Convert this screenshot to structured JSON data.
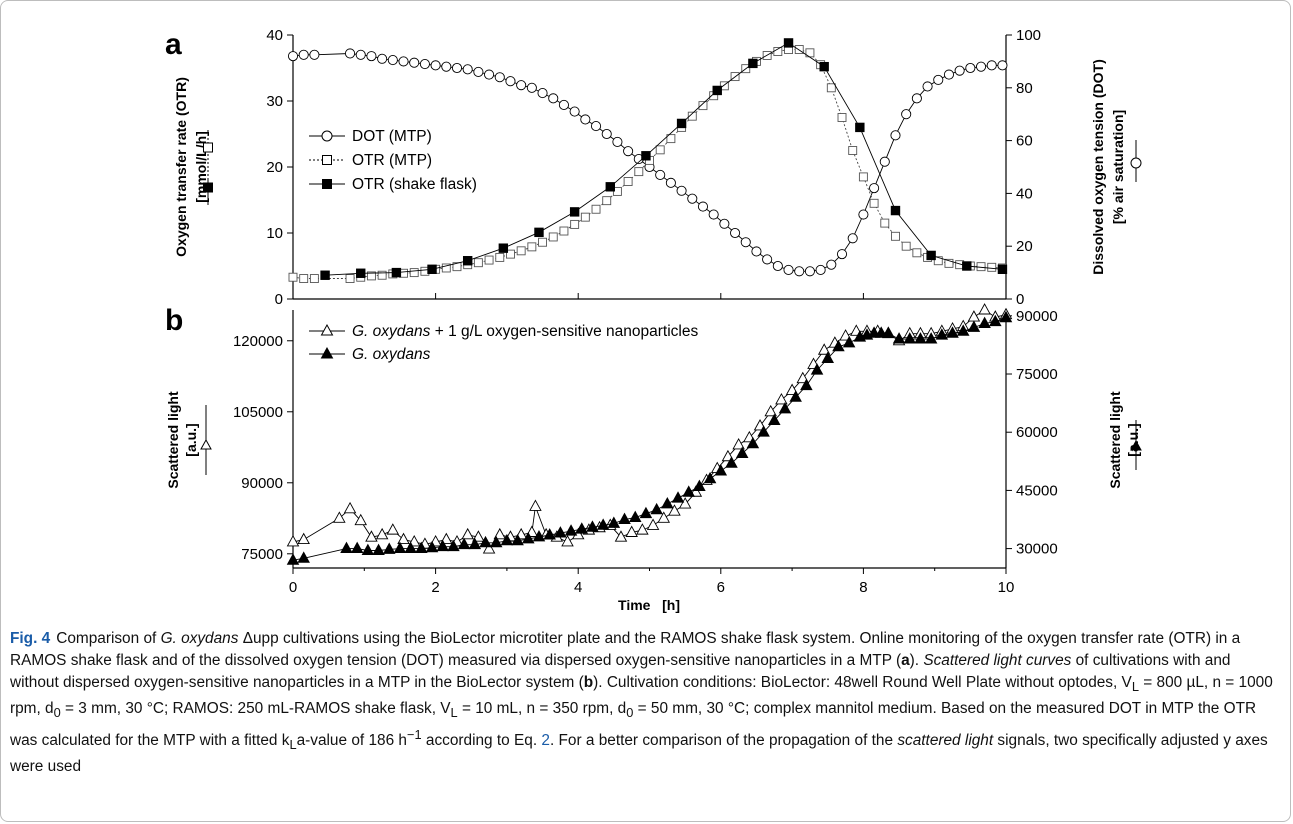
{
  "panels": {
    "a": {
      "label": "a",
      "y_left": {
        "label_line1": "Oxygen transfer rate (OTR)",
        "label_line2": "[mmol/L/h]",
        "ticks": [
          "0",
          "10",
          "20",
          "30",
          "40"
        ],
        "range": [
          0,
          40
        ]
      },
      "y_right": {
        "label_line1": "Dissolved oxygen tension (DOT)",
        "label_line2": "[% air saturation]",
        "ticks": [
          "0",
          "20",
          "40",
          "60",
          "80",
          "100"
        ],
        "range": [
          0,
          100
        ]
      },
      "legend": [
        "DOT (MTP)",
        "OTR (MTP)",
        "OTR (shake flask)"
      ]
    },
    "b": {
      "label": "b",
      "y_left": {
        "label_line1": "Scattered light",
        "label_line2": "[a.u.]",
        "ticks": [
          "75000",
          "90000",
          "105000",
          "120000"
        ],
        "range": [
          72000,
          126500
        ]
      },
      "y_right": {
        "label_line1": "Scattered light",
        "label_line2": "[a.u.]",
        "ticks": [
          "30000",
          "45000",
          "60000",
          "75000",
          "90000"
        ],
        "range": [
          25000,
          91500
        ]
      },
      "legend": [
        {
          "italic": "G. oxydans",
          "rest": " + 1 g/L oxygen-sensitive nanoparticles"
        },
        {
          "italic": "G. oxydans",
          "rest": ""
        }
      ]
    },
    "x": {
      "label": "Time   [h]",
      "ticks": [
        "0",
        "2",
        "4",
        "6",
        "8",
        "10"
      ],
      "range": [
        0,
        10
      ]
    }
  },
  "chart_data": [
    {
      "type": "line",
      "panel": "a",
      "xlabel": "Time   [h]",
      "ylabel": "Oxygen transfer rate (OTR) [mmol/L/h]",
      "ylabel_right": "Dissolved oxygen tension (DOT) [% air saturation]",
      "xlim": [
        0,
        10
      ],
      "ylim": [
        0,
        40
      ],
      "ylim_right": [
        0,
        100
      ],
      "series": [
        {
          "name": "DOT (MTP)",
          "axis": "right",
          "marker": "open-circle",
          "x": [
            0,
            0.15,
            0.3,
            0.8,
            0.95,
            1.1,
            1.25,
            1.4,
            1.55,
            1.7,
            1.85,
            2.0,
            2.15,
            2.3,
            2.45,
            2.6,
            2.75,
            2.9,
            3.05,
            3.2,
            3.35,
            3.5,
            3.65,
            3.8,
            3.95,
            4.1,
            4.25,
            4.4,
            4.55,
            4.7,
            4.85,
            5.0,
            5.15,
            5.3,
            5.45,
            5.6,
            5.75,
            5.9,
            6.05,
            6.2,
            6.35,
            6.5,
            6.65,
            6.8,
            6.95,
            7.1,
            7.25,
            7.4,
            7.55,
            7.7,
            7.85,
            8.0,
            8.15,
            8.3,
            8.45,
            8.6,
            8.75,
            8.9,
            9.05,
            9.2,
            9.35,
            9.5,
            9.65,
            9.8,
            9.95
          ],
          "y": [
            92,
            92.5,
            92.5,
            93,
            92.5,
            92,
            91,
            90.5,
            90,
            89.5,
            89,
            88.5,
            88,
            87.5,
            87,
            86,
            85,
            84,
            82.5,
            81,
            80,
            78,
            76,
            73.5,
            71,
            68,
            65.5,
            62.5,
            59.5,
            56,
            53,
            50,
            47,
            44,
            41,
            38,
            35,
            32,
            28.5,
            25,
            21.5,
            18,
            15,
            12.5,
            11,
            10.5,
            10.5,
            11,
            13,
            17,
            23,
            32,
            42,
            52,
            62,
            70,
            76,
            80.5,
            83,
            85,
            86.5,
            87.5,
            88,
            88.5,
            88.5
          ]
        },
        {
          "name": "OTR (MTP)",
          "axis": "left",
          "marker": "open-square",
          "x": [
            0,
            0.15,
            0.3,
            0.8,
            0.95,
            1.1,
            1.25,
            1.4,
            1.55,
            1.7,
            1.85,
            2.0,
            2.15,
            2.3,
            2.45,
            2.6,
            2.75,
            2.9,
            3.05,
            3.2,
            3.35,
            3.5,
            3.65,
            3.8,
            3.95,
            4.1,
            4.25,
            4.4,
            4.55,
            4.7,
            4.85,
            5.0,
            5.15,
            5.3,
            5.45,
            5.6,
            5.75,
            5.9,
            6.05,
            6.2,
            6.35,
            6.5,
            6.65,
            6.8,
            6.95,
            7.1,
            7.25,
            7.4,
            7.55,
            7.7,
            7.85,
            8.0,
            8.15,
            8.3,
            8.45,
            8.6,
            8.75,
            8.9,
            9.05,
            9.2,
            9.35,
            9.5,
            9.65,
            9.8,
            9.95
          ],
          "y": [
            3.3,
            3.1,
            3.1,
            3.1,
            3.3,
            3.5,
            3.6,
            3.8,
            3.9,
            4.0,
            4.2,
            4.5,
            4.7,
            4.9,
            5.2,
            5.5,
            5.9,
            6.3,
            6.8,
            7.3,
            7.9,
            8.6,
            9.4,
            10.3,
            11.3,
            12.4,
            13.6,
            14.9,
            16.3,
            17.8,
            19.3,
            21.0,
            22.6,
            24.3,
            26.0,
            27.7,
            29.3,
            30.8,
            32.3,
            33.7,
            34.9,
            36.0,
            36.9,
            37.5,
            37.8,
            37.8,
            37.3,
            35.5,
            32.0,
            27.5,
            22.5,
            18.5,
            14.5,
            11.5,
            9.5,
            8.0,
            7.0,
            6.3,
            5.8,
            5.4,
            5.2,
            5.0,
            4.9,
            4.8,
            4.7
          ]
        },
        {
          "name": "OTR (shake flask)",
          "axis": "left",
          "marker": "filled-square",
          "x": [
            0.45,
            0.95,
            1.45,
            1.95,
            2.45,
            2.95,
            3.45,
            3.95,
            4.45,
            4.95,
            5.45,
            5.95,
            6.45,
            6.95,
            7.45,
            7.95,
            8.45,
            8.95,
            9.45,
            9.95
          ],
          "y": [
            3.6,
            3.9,
            4.0,
            4.5,
            5.8,
            7.7,
            10.1,
            13.2,
            17.0,
            21.7,
            26.6,
            31.6,
            35.7,
            38.8,
            35.2,
            26.0,
            13.4,
            6.6,
            5.0,
            4.5
          ]
        }
      ]
    },
    {
      "type": "line",
      "panel": "b",
      "xlabel": "Time   [h]",
      "ylabel": "Scattered light [a.u.]",
      "ylabel_right": "Scattered light [a.u.]",
      "xlim": [
        0,
        10
      ],
      "ylim": [
        72000,
        126500
      ],
      "ylim_right": [
        25000,
        91500
      ],
      "series": [
        {
          "name": "G. oxydans + 1 g/L oxygen-sensitive nanoparticles",
          "axis": "left",
          "marker": "open-triangle",
          "x": [
            0,
            0.15,
            0.65,
            0.8,
            0.95,
            1.1,
            1.25,
            1.4,
            1.55,
            1.7,
            1.85,
            2.0,
            2.15,
            2.3,
            2.45,
            2.6,
            2.75,
            2.9,
            3.05,
            3.2,
            3.35,
            3.4,
            3.55,
            3.7,
            3.85,
            4.0,
            4.15,
            4.3,
            4.45,
            4.6,
            4.75,
            4.9,
            5.05,
            5.2,
            5.35,
            5.5,
            5.65,
            5.8,
            5.95,
            6.1,
            6.25,
            6.4,
            6.55,
            6.7,
            6.85,
            7.0,
            7.15,
            7.3,
            7.45,
            7.6,
            7.75,
            7.9,
            8.05,
            8.2,
            8.35,
            8.5,
            8.65,
            8.8,
            8.95,
            9.1,
            9.25,
            9.4,
            9.55,
            9.7,
            9.85,
            10.0
          ],
          "y": [
            77500,
            78000,
            82500,
            84500,
            82000,
            78500,
            79000,
            80000,
            78000,
            77500,
            77000,
            77500,
            78000,
            77500,
            79000,
            78500,
            76000,
            79000,
            78500,
            79000,
            79500,
            85000,
            79000,
            78500,
            77500,
            79000,
            80000,
            80500,
            81000,
            78500,
            79500,
            80000,
            81000,
            82500,
            84000,
            85500,
            88000,
            90500,
            93000,
            95500,
            98000,
            99500,
            102000,
            105000,
            107500,
            109500,
            112000,
            115000,
            118000,
            119500,
            121000,
            122000,
            122000,
            122000,
            121500,
            120000,
            121500,
            121500,
            121500,
            122000,
            122500,
            123000,
            125000,
            126500,
            125000,
            125500
          ]
        },
        {
          "name": "G. oxydans",
          "axis": "right",
          "marker": "filled-triangle",
          "x": [
            0,
            0.15,
            0.75,
            0.9,
            1.05,
            1.2,
            1.35,
            1.5,
            1.65,
            1.8,
            1.95,
            2.1,
            2.25,
            2.4,
            2.55,
            2.7,
            2.85,
            3.0,
            3.15,
            3.3,
            3.45,
            3.6,
            3.75,
            3.9,
            4.05,
            4.2,
            4.35,
            4.5,
            4.65,
            4.8,
            4.95,
            5.1,
            5.25,
            5.4,
            5.55,
            5.7,
            5.85,
            6.0,
            6.15,
            6.3,
            6.45,
            6.6,
            6.75,
            6.9,
            7.05,
            7.2,
            7.35,
            7.5,
            7.65,
            7.8,
            7.95,
            8.05,
            8.15,
            8.25,
            8.35,
            8.5,
            8.65,
            8.8,
            8.95,
            9.1,
            9.25,
            9.4,
            9.55,
            9.7,
            9.85,
            10.0
          ],
          "y": [
            27000,
            27500,
            30000,
            30000,
            29500,
            29500,
            29800,
            30000,
            30000,
            30000,
            30200,
            30500,
            30500,
            31000,
            31000,
            31500,
            31500,
            32000,
            32000,
            32500,
            33000,
            33500,
            34000,
            34500,
            35000,
            35500,
            36000,
            36500,
            37500,
            38000,
            39000,
            40000,
            41500,
            43000,
            44500,
            46000,
            48000,
            50000,
            52000,
            54500,
            57000,
            60000,
            63000,
            66000,
            69000,
            72000,
            76000,
            79000,
            82000,
            83000,
            84500,
            85000,
            85500,
            85500,
            85500,
            84000,
            84000,
            84000,
            84000,
            85000,
            85500,
            86000,
            87000,
            88000,
            88500,
            89500
          ]
        }
      ]
    }
  ],
  "caption": {
    "fig_label": "Fig. 4",
    "s1": "Comparison of ",
    "s1_italic": "G. oxydans",
    "s1b": " Δupp cultivations using the BioLector microtiter plate and the RAMOS shake flask system. Online monitoring of the oxygen transfer rate (OTR) in a RAMOS shake flask and of the dissolved oxygen tension (DOT) measured via dispersed oxygen-sensitive nanoparticles in a MTP (",
    "a_ref": "a",
    "s2": "). ",
    "s2_italic": "Scattered light curves",
    "s3": " of cultivations with and without dispersed oxygen-sensitive nanoparticles in a MTP in the BioLector system (",
    "b_ref": "b",
    "s4": "). Cultivation conditions: BioLector: 48well Round Well Plate without optodes, V",
    "sub_L1": "L",
    "s5": " = 800 µL, n = 1000 rpm, d",
    "sub_01": "0",
    "s6": " = 3 mm, 30 °C; RAMOS: 250 mL-RAMOS shake flask, V",
    "sub_L2": "L",
    "s7": " = 10 mL, n = 350 rpm, d",
    "sub_02": "0",
    "s8": " = 50 mm, 30 °C; complex mannitol medium. Based on the measured DOT in MTP the OTR was calculated for the MTP with a fitted k",
    "sub_L3": "L",
    "s9": "a-value of 186 h",
    "sup_m1": "−1",
    "s10": " according to Eq. ",
    "eq_ref": "2",
    "s11": ". For a better comparison of the propagation of the ",
    "s11_italic": "scattered light",
    "s12": " signals, two specifically adjusted y axes were used"
  },
  "colors": {
    "ink": "#000000",
    "grid": "#000000",
    "caption_label": "#1a5ca8"
  }
}
